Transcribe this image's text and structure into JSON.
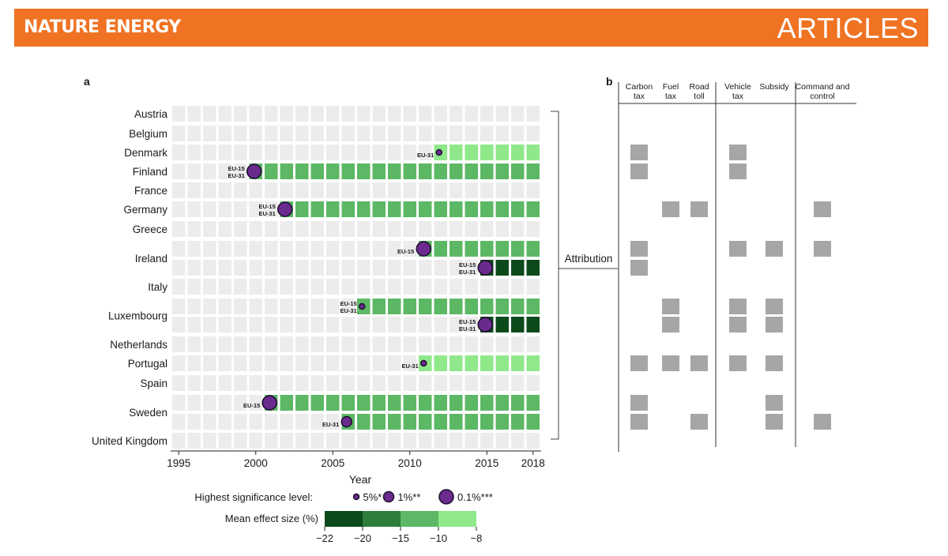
{
  "header": {
    "journal": "NATURE ENERGY",
    "section": "ARTICLES"
  },
  "panels": {
    "a": "a",
    "b": "b"
  },
  "chart_data": {
    "type": "heatmap",
    "title": "",
    "xlabel": "Year",
    "x_ticks": [
      1995,
      2000,
      2005,
      2010,
      2015,
      2018
    ],
    "x_range": [
      1995,
      2018
    ],
    "countries": [
      "Austria",
      "Belgium",
      "Denmark",
      "Finland",
      "France",
      "Germany",
      "Greece",
      "Ireland",
      "Italy",
      "Luxembourg",
      "Netherlands",
      "Portugal",
      "Spain",
      "Sweden",
      "United Kingdom"
    ],
    "rows": [
      {
        "country": "Austria",
        "breaks": []
      },
      {
        "country": "Belgium",
        "breaks": []
      },
      {
        "country": "Denmark",
        "breaks": [
          {
            "year": 2012,
            "sig": "5%",
            "effect_bin": "-10 to -8",
            "labels": [
              "EU-31"
            ]
          }
        ]
      },
      {
        "country": "Finland",
        "breaks": [
          {
            "year": 2000,
            "sig": "0.1%",
            "effect_bin": "-15 to -10",
            "labels": [
              "EU-15",
              "EU-31"
            ]
          }
        ]
      },
      {
        "country": "France",
        "breaks": []
      },
      {
        "country": "Germany",
        "breaks": [
          {
            "year": 2002,
            "sig": "0.1%",
            "effect_bin": "-15 to -10",
            "labels": [
              "EU-15",
              "EU-31"
            ]
          }
        ]
      },
      {
        "country": "Greece",
        "breaks": []
      },
      {
        "country": "Ireland",
        "breaks": [
          {
            "year": 2011,
            "sig": "0.1%",
            "effect_bin": "-15 to -10",
            "labels": [
              "EU-15"
            ]
          }
        ]
      },
      {
        "country": "Ireland",
        "breaks": [
          {
            "year": 2015,
            "sig": "0.1%",
            "effect_bin": "-22 to -20",
            "labels": [
              "EU-15",
              "EU-31"
            ]
          }
        ]
      },
      {
        "country": "Italy",
        "breaks": []
      },
      {
        "country": "Luxembourg",
        "breaks": [
          {
            "year": 2007,
            "sig": "5%",
            "effect_bin": "-15 to -10",
            "labels": [
              "EU-15",
              "EU-31"
            ]
          }
        ]
      },
      {
        "country": "Luxembourg",
        "breaks": [
          {
            "year": 2015,
            "sig": "0.1%",
            "effect_bin": "-22 to -20",
            "labels": [
              "EU-15",
              "EU-31"
            ]
          }
        ]
      },
      {
        "country": "Netherlands",
        "breaks": []
      },
      {
        "country": "Portugal",
        "breaks": [
          {
            "year": 2011,
            "sig": "5%",
            "effect_bin": "-10 to -8",
            "labels": [
              "EU-31"
            ]
          }
        ]
      },
      {
        "country": "Spain",
        "breaks": []
      },
      {
        "country": "Sweden",
        "breaks": [
          {
            "year": 2001,
            "sig": "0.1%",
            "effect_bin": "-15 to -10",
            "labels": [
              "EU-15"
            ]
          }
        ]
      },
      {
        "country": "Sweden",
        "breaks": [
          {
            "year": 2006,
            "sig": "1%",
            "effect_bin": "-15 to -10",
            "labels": [
              "EU-31"
            ]
          }
        ]
      },
      {
        "country": "United Kingdom",
        "breaks": []
      }
    ],
    "significance_legend": {
      "label": "Highest significance level:",
      "items": [
        {
          "key": "5%",
          "text": "5%*"
        },
        {
          "key": "1%",
          "text": "1%**"
        },
        {
          "key": "0.1%",
          "text": "0.1%***"
        }
      ]
    },
    "effect_legend": {
      "label": "Mean effect size (%)",
      "ticks": [
        "−22",
        "−20",
        "−15",
        "−10",
        "−8"
      ],
      "bins": [
        {
          "range": "-22 to -20",
          "color": "#0c4a1b"
        },
        {
          "range": "-20 to -15",
          "color": "#2f7d3b"
        },
        {
          "range": "-15 to -10",
          "color": "#5cb865"
        },
        {
          "range": "-10 to -8",
          "color": "#8fe88a"
        }
      ]
    },
    "attribution_label": "Attribution",
    "policy_columns": [
      "Carbon tax",
      "Fuel tax",
      "Road toll",
      "Vehicle tax",
      "Subsidy",
      "Command and control"
    ],
    "policy_headers": [
      [
        "Carbon",
        "tax"
      ],
      [
        "Fuel",
        "tax"
      ],
      [
        "Road",
        "toll"
      ],
      [
        "Vehicle",
        "tax"
      ],
      [
        "Subsidy"
      ],
      [
        "Command and",
        "control"
      ]
    ],
    "attribution": [
      {
        "row": "Denmark",
        "policies": [
          "Carbon tax",
          "Vehicle tax"
        ]
      },
      {
        "row": "Finland",
        "policies": [
          "Carbon tax",
          "Vehicle tax"
        ]
      },
      {
        "row": "Germany",
        "policies": [
          "Fuel tax",
          "Road toll",
          "Command and control"
        ]
      },
      {
        "row": "Ireland (2011)",
        "policies": [
          "Carbon tax",
          "Vehicle tax",
          "Subsidy",
          "Command and control"
        ]
      },
      {
        "row": "Ireland (2015)",
        "policies": [
          "Carbon tax"
        ]
      },
      {
        "row": "Luxembourg (2007)",
        "policies": [
          "Fuel tax",
          "Vehicle tax",
          "Subsidy"
        ]
      },
      {
        "row": "Luxembourg (2015)",
        "policies": [
          "Fuel tax",
          "Vehicle tax",
          "Subsidy"
        ]
      },
      {
        "row": "Portugal",
        "policies": [
          "Carbon tax",
          "Fuel tax",
          "Road toll",
          "Vehicle tax",
          "Subsidy"
        ]
      },
      {
        "row": "Sweden (2001)",
        "policies": [
          "Carbon tax",
          "Subsidy"
        ]
      },
      {
        "row": "Sweden (2006)",
        "policies": [
          "Carbon tax",
          "Road toll",
          "Subsidy",
          "Command and control"
        ]
      }
    ],
    "colors": {
      "empty_cell": "#ececec",
      "bubble_fill": "#6a2a8e",
      "bubble_stroke": "#1a0f2a",
      "policy_box": "#a6a6a6",
      "banner": "#ef7323"
    }
  }
}
